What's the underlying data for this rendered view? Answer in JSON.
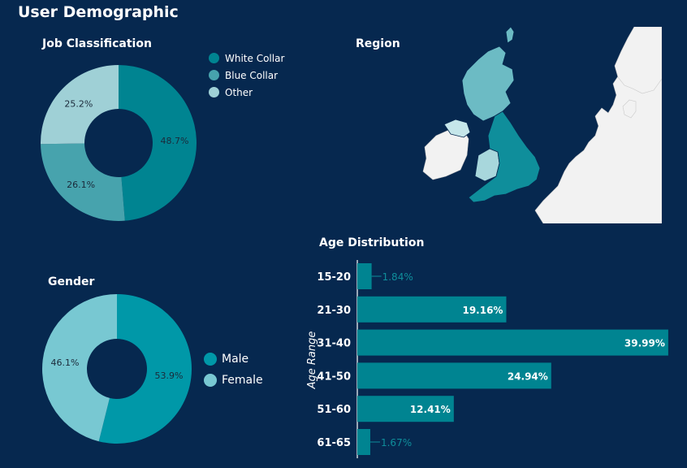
{
  "dashboard": {
    "title": "User Demographic"
  },
  "job": {
    "heading": "Job Classification",
    "legend": [
      {
        "label": "White Collar",
        "color": "#008491"
      },
      {
        "label": "Blue Collar",
        "color": "#47a3ad"
      },
      {
        "label": "Other",
        "color": "#9fd0d6"
      }
    ]
  },
  "region": {
    "heading": "Region"
  },
  "gender": {
    "heading": "Gender",
    "legend": [
      {
        "label": "Male",
        "color": "#0098a8"
      },
      {
        "label": "Female",
        "color": "#78c8d2"
      }
    ]
  },
  "age": {
    "heading": "Age Distribution",
    "ylabel": "Age Range"
  },
  "chart_data": [
    {
      "type": "pie",
      "title": "Job Classification",
      "categories": [
        "White Collar",
        "Blue Collar",
        "Other"
      ],
      "values": [
        48.7,
        26.1,
        25.2
      ],
      "labels": [
        "48.7%",
        "26.1%",
        "25.2%"
      ],
      "colors": [
        "#008491",
        "#47a3ad",
        "#9fd0d6"
      ],
      "donut": true,
      "legend": "right"
    },
    {
      "type": "pie",
      "title": "Gender",
      "categories": [
        "Male",
        "Female"
      ],
      "values": [
        53.9,
        46.1
      ],
      "labels": [
        "53.9%",
        "46.1%"
      ],
      "colors": [
        "#0098a8",
        "#78c8d2"
      ],
      "donut": true,
      "legend": "right"
    },
    {
      "type": "bar",
      "orientation": "horizontal",
      "title": "Age Distribution",
      "ylabel": "Age Range",
      "categories": [
        "15-20",
        "21-30",
        "31-40",
        "41-50",
        "51-60",
        "61-65"
      ],
      "values": [
        1.84,
        19.16,
        39.99,
        24.94,
        12.41,
        1.67
      ],
      "labels": [
        "1.84%",
        "19.16%",
        "39.99%",
        "24.94%",
        "12.41%",
        "1.67%"
      ],
      "color": "#008491",
      "xlim": [
        0,
        40
      ]
    }
  ]
}
